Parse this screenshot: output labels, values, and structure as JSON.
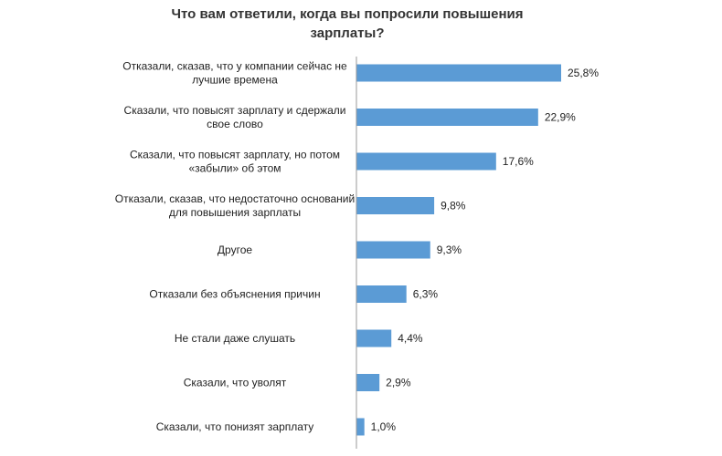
{
  "chart_data": {
    "type": "bar",
    "orientation": "horizontal",
    "title": "Что вам ответили, когда вы попросили повышения зарплаты?",
    "categories": [
      [
        "Отказали, сказав, что у компании сейчас не",
        "лучшие времена"
      ],
      [
        "Сказали, что повысят зарплату и сдержали",
        "свое слово"
      ],
      [
        "Сказали, что повысят зарплату, но потом",
        "«забыли» об этом"
      ],
      [
        "Отказали, сказав, что недостаточно оснований",
        "для повышения зарплаты"
      ],
      [
        "Другое"
      ],
      [
        "Отказали без объяснения причин"
      ],
      [
        "Не стали даже слушать"
      ],
      [
        "Сказали, что уволят"
      ],
      [
        "Сказали, что понизят зарплату"
      ]
    ],
    "values": [
      25.8,
      22.9,
      17.6,
      9.8,
      9.3,
      6.3,
      4.4,
      2.9,
      1.0
    ],
    "value_labels": [
      "25,8%",
      "22,9%",
      "17,6%",
      "9,8%",
      "9,3%",
      "6,3%",
      "4,4%",
      "2,9%",
      "1,0%"
    ],
    "xlim": [
      0,
      25.8
    ],
    "bar_color": "#5b9bd5",
    "axis_color": "#999999",
    "grid": false,
    "legend": "none"
  }
}
